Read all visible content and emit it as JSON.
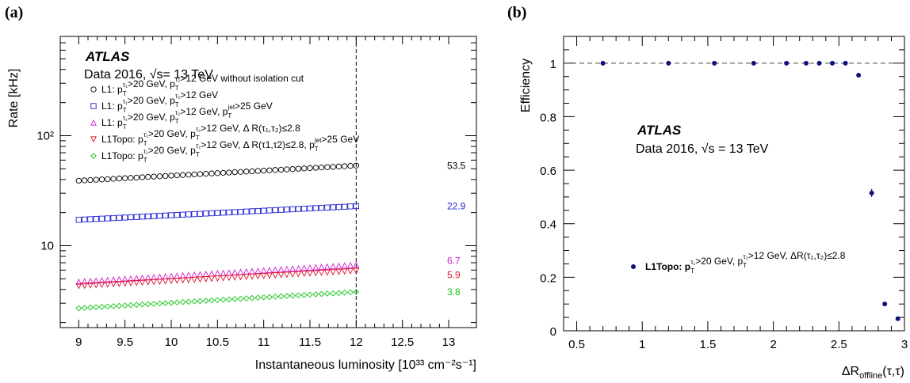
{
  "panels": {
    "a": "(a)",
    "b": "(b)"
  },
  "chart_data": [
    {
      "type": "scatter",
      "panel": "(a)",
      "atlas_label": "ATLAS",
      "data_label": "Data 2016, √s= 13 TeV",
      "xlabel": "Instantaneous luminosity [10³³ cm⁻²s⁻¹]",
      "ylabel": "Rate [kHz]",
      "yscale": "log",
      "xlim": [
        8.8,
        13.3
      ],
      "ylim": [
        1.8,
        800
      ],
      "xticks": [
        "9",
        "9.5",
        "10",
        "10.5",
        "11",
        "11.5",
        "12",
        "12.5",
        "13"
      ],
      "yticks": [
        "10",
        "10²"
      ],
      "vline_x": 12,
      "x_start": 9,
      "x_end": 12,
      "n_points": 49,
      "series": [
        {
          "name": "L1: pT(τ1)>20 GeV, pT(τ2)>12 GeV without isolation cut",
          "legend_text": "L1: p_T^τ1>20 GeV, p_T^τ2>12 GeV without isolation cut",
          "marker": "circle-open",
          "color": "#000000",
          "y_start": 39,
          "y_end": 53.5,
          "end_label": "53.5"
        },
        {
          "name": "L1: pT(τ1)>20 GeV, pT(τ2)>12 GeV",
          "legend_text": "L1: p_T^τ1>20 GeV, p_T^τ2>12 GeV",
          "marker": "square-open",
          "color": "#1f1fd6",
          "y_start": 17.2,
          "y_end": 22.9,
          "end_label": "22.9"
        },
        {
          "name": "L1: pT(τ1)>20 GeV, pT(τ2)>12 GeV, pT(jet)>25 GeV",
          "legend_text": "L1: p_T^τ1>20 GeV, p_T^τ2>12 GeV, p_T^jet>25 GeV",
          "marker": "triangle-up-open",
          "color": "#d11fd1",
          "y_start": 4.7,
          "y_end": 6.7,
          "end_label": "6.7"
        },
        {
          "name": "L1Topo: pT(τ1)>20 GeV, pT(τ2)>12 GeV, ΔR(τ1,τ2)≤2.8",
          "legend_text": "L1Topo: p_T^τ1>20 GeV, p_T^τ2>12 GeV, Δ R(τ1,τ2)≤2.8",
          "marker": "triangle-down-open",
          "color": "#e0102a",
          "y_start": 4.3,
          "y_end": 5.9,
          "end_label": "5.9"
        },
        {
          "name": "L1Topo: pT(τ1)>20 GeV, pT(τ2)>12 GeV, ΔR(τ1,τ2)≤2.8, pT(jet)>25 GeV",
          "legend_text": "L1Topo: p_T^τ1>20 GeV, p_T^τ2>12 GeV, Δ R(τ1,τ2)≤2.8, p_T^jet>25 GeV",
          "marker": "diamond-open",
          "color": "#18c418",
          "y_start": 2.7,
          "y_end": 3.8,
          "end_label": "3.8"
        }
      ]
    },
    {
      "type": "scatter",
      "panel": "(b)",
      "atlas_label": "ATLAS",
      "data_label": "Data 2016, √s = 13 TeV",
      "xlabel": "ΔR_offline(τ,τ)",
      "ylabel": "Efficiency",
      "xlim": [
        0.4,
        3.0
      ],
      "ylim": [
        0,
        1.1
      ],
      "xticks": [
        "0.5",
        "1",
        "1.5",
        "2",
        "2.5",
        "3"
      ],
      "yticks": [
        "0",
        "0.2",
        "0.4",
        "0.6",
        "0.8",
        "1"
      ],
      "hline_y": 1,
      "series": [
        {
          "name": "L1Topo: pT(τ1)>20 GeV, pT(τ2)>12 GeV, ΔR(τ1,τ2)≤2.8",
          "legend_text": "L1Topo: p_T^τ1>20 GeV, p_T^τ2>12 GeV, ΔR(τ1,τ2)≤2.8",
          "color": "#101080",
          "x": [
            0.7,
            1.2,
            1.55,
            1.85,
            2.1,
            2.25,
            2.35,
            2.45,
            2.55,
            2.65,
            2.75,
            2.85,
            2.95
          ],
          "y": [
            1.0,
            1.0,
            1.0,
            1.0,
            1.0,
            1.0,
            1.0,
            1.0,
            1.0,
            0.955,
            0.515,
            0.1,
            0.045
          ],
          "yerr": [
            0,
            0,
            0,
            0,
            0,
            0,
            0,
            0,
            0,
            0.006,
            0.015,
            0.006,
            0.004
          ]
        }
      ]
    }
  ]
}
